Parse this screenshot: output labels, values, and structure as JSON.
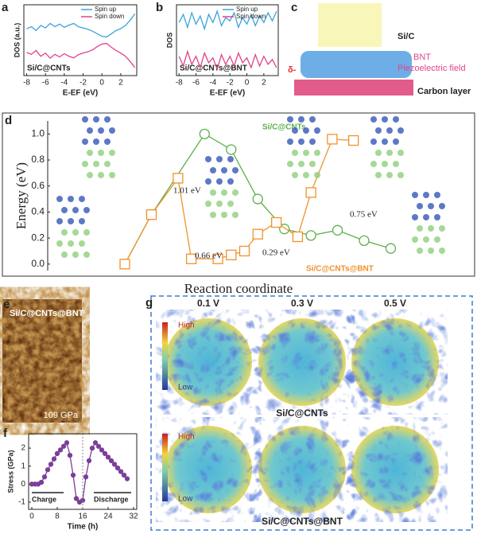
{
  "chart_data": [
    {
      "type": "line",
      "label": "a",
      "xlabel": "E-EF (eV)",
      "ylabel": "DOS (a.u.)",
      "inner_label": "Si/C@CNTs",
      "legend": "upper right",
      "xlim": [
        -8.3,
        3.7
      ],
      "ylim": [
        -1.1,
        1.1
      ],
      "xticks": [
        -8,
        -6,
        -4,
        -2,
        0,
        2
      ],
      "x": [
        -8,
        -7.5,
        -7,
        -6.5,
        -6,
        -5.5,
        -5,
        -4.5,
        -4,
        -3.5,
        -3,
        -2.5,
        -2,
        -1.5,
        -1,
        -0.5,
        0,
        0.5,
        1,
        1.5,
        2,
        2.5,
        3,
        3.5
      ],
      "series": [
        {
          "name": "Spin up",
          "color": "#3aa3dc",
          "values": [
            0.35,
            0.42,
            0.3,
            0.46,
            0.38,
            0.52,
            0.42,
            0.5,
            0.4,
            0.47,
            0.52,
            0.42,
            0.38,
            0.34,
            0.28,
            0.2,
            0.12,
            0.1,
            0.2,
            0.3,
            0.36,
            0.46,
            0.62,
            0.82
          ]
        },
        {
          "name": "Spin down",
          "color": "#e0438c",
          "values": [
            -0.38,
            -0.44,
            -0.32,
            -0.5,
            -0.4,
            -0.56,
            -0.44,
            -0.52,
            -0.42,
            -0.5,
            -0.55,
            -0.45,
            -0.4,
            -0.36,
            -0.3,
            -0.2,
            -0.12,
            -0.1,
            -0.22,
            -0.32,
            -0.4,
            -0.5,
            -0.66,
            -0.85
          ]
        }
      ]
    },
    {
      "type": "line",
      "label": "b",
      "xlabel": "E-EF (eV)",
      "ylabel": "DOS",
      "inner_label": "Si/C@CNTs@BNT",
      "legend": "upper right",
      "xlim": [
        -8.3,
        3.7
      ],
      "ylim": [
        -1.1,
        1.1
      ],
      "xticks": [
        -8,
        -6,
        -4,
        -2,
        0,
        2
      ],
      "x": [
        -8,
        -7.5,
        -7,
        -6.5,
        -6,
        -5.5,
        -5,
        -4.5,
        -4,
        -3.5,
        -3,
        -2.5,
        -2,
        -1.5,
        -1,
        -0.5,
        0,
        0.5,
        1,
        1.5,
        2,
        2.5,
        3,
        3.5
      ],
      "series": [
        {
          "name": "Spin up",
          "color": "#3aa3dc",
          "values": [
            0.55,
            0.8,
            0.4,
            0.85,
            0.5,
            0.75,
            0.35,
            0.8,
            0.55,
            0.9,
            0.45,
            0.7,
            0.6,
            0.85,
            0.4,
            0.7,
            0.5,
            0.8,
            0.45,
            0.75,
            0.55,
            0.85,
            0.6,
            0.9
          ]
        },
        {
          "name": "Spin down",
          "color": "#e0438c",
          "values": [
            -0.5,
            -0.8,
            -0.35,
            -0.75,
            -0.5,
            -0.85,
            -0.4,
            -0.7,
            -0.55,
            -0.9,
            -0.45,
            -0.75,
            -0.5,
            -0.8,
            -0.4,
            -0.7,
            -0.55,
            -0.85,
            -0.45,
            -0.8,
            -0.5,
            -0.75,
            -0.6,
            -0.85
          ]
        }
      ]
    },
    {
      "type": "line",
      "label": "d",
      "ylabel": "Energy (eV)",
      "xlabel": "Reaction coordinate",
      "xlim": [
        -2.9,
        11.6
      ],
      "ylim": [
        -0.05,
        1.1
      ],
      "yticks": [
        {
          "value": 0,
          "label": "0.0"
        },
        0.2,
        0.4,
        0.6,
        0.8,
        {
          "value": 1,
          "label": "1.0"
        }
      ],
      "series": [
        {
          "name": "Si/C@CNTs",
          "color": "#5bb04a",
          "marker": "circle",
          "x": [
            0,
            1,
            3,
            4,
            5,
            6,
            7,
            8,
            9,
            10
          ],
          "values": [
            0,
            0.38,
            1.0,
            0.88,
            0.5,
            0.27,
            0.22,
            0.26,
            0.18,
            0.12
          ]
        },
        {
          "name": "Si/C@CNTs@BNT",
          "color": "#f0922b",
          "marker": "square",
          "x": [
            0,
            1,
            2,
            2.5,
            3.5,
            4,
            4.5,
            5,
            5.7,
            6.5,
            7,
            7.8,
            8.6
          ],
          "values": [
            0,
            0.38,
            0.66,
            0.04,
            0.04,
            0.07,
            0.1,
            0.23,
            0.32,
            0.21,
            0.55,
            0.96,
            0.95
          ]
        }
      ],
      "annotations": [
        "1.01 eV",
        "0.66 eV",
        "0.29 eV",
        "0.75 eV"
      ]
    },
    {
      "type": "line",
      "label": "f",
      "xlabel": "Time (h)",
      "ylabel": "Stress (GPa)",
      "xlim": [
        -1,
        33
      ],
      "ylim": [
        -1.4,
        2.8
      ],
      "xticks": [
        0,
        8,
        16,
        24,
        32
      ],
      "yticks": [
        -1,
        0,
        1,
        2
      ],
      "x": [
        0,
        1,
        2,
        3,
        4,
        5,
        6,
        7,
        8,
        9,
        10,
        11,
        12,
        13,
        14,
        15,
        16,
        17,
        18,
        19,
        20,
        21,
        22,
        23,
        24,
        25,
        26,
        27,
        28,
        29,
        30
      ],
      "series": [
        {
          "name": "Stress",
          "color": "#7b3f99",
          "marker": "circle",
          "values": [
            0,
            0,
            0,
            0.1,
            0.4,
            0.8,
            1.1,
            1.4,
            1.7,
            1.9,
            2.1,
            2.3,
            1.6,
            0.5,
            -0.8,
            -1.0,
            -0.9,
            0.4,
            1.3,
            2.0,
            2.3,
            2.1,
            1.9,
            1.7,
            1.5,
            1.3,
            1.1,
            0.9,
            0.7,
            0.5,
            0.3
          ]
        }
      ],
      "annotations": [
        "Charge",
        "Discharge"
      ]
    }
  ],
  "panel_c": {
    "label": "c",
    "texts": [
      "Si/C",
      "BNT",
      "Piezoelectric field",
      "Carbon layer"
    ]
  },
  "panel_e": {
    "label": "e",
    "sample": "Si/C@CNTs@BNT",
    "scale": "109 GPa"
  },
  "panel_g": {
    "label": "g",
    "voltages": [
      "0.1 V",
      "0.3 V",
      "0.5 V"
    ],
    "rows": [
      "Si/C@CNTs",
      "Si/C@CNTs@BNT"
    ],
    "colorbar": [
      "High",
      "Low"
    ]
  }
}
